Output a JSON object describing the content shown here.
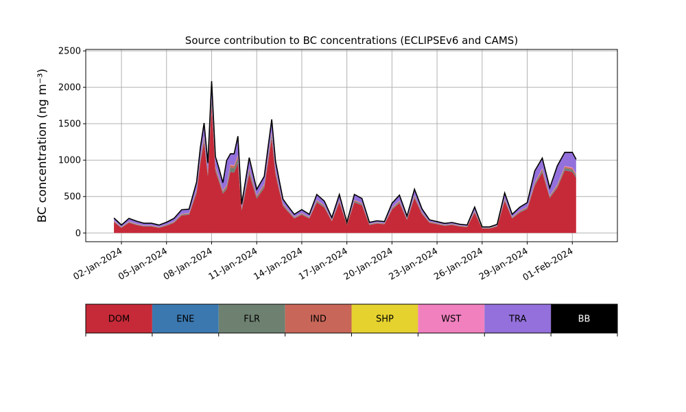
{
  "chart_data": {
    "type": "area",
    "stacked": true,
    "title": "Source contribution to BC concentrations (ECLIPSEv6 and CAMS)",
    "ylabel": "BC concentration (ng m⁻³)",
    "xlabel": "",
    "ylim": [
      -120,
      2520
    ],
    "xlim": [
      "2023-12-30 15:00",
      "2024-02-04 00:00"
    ],
    "grid": true,
    "x_ticks": [
      "02-Jan-2024",
      "05-Jan-2024",
      "08-Jan-2024",
      "11-Jan-2024",
      "14-Jan-2024",
      "17-Jan-2024",
      "20-Jan-2024",
      "23-Jan-2024",
      "26-Jan-2024",
      "29-Jan-2024",
      "01-Feb-2024"
    ],
    "y_ticks": [
      0,
      500,
      1000,
      1500,
      2000,
      2500
    ],
    "x": [
      "2024-01-01 12:00",
      "2024-01-01 18:00",
      "2024-01-02 00:00",
      "2024-01-02 12:00",
      "2024-01-03 00:00",
      "2024-01-03 12:00",
      "2024-01-04 00:00",
      "2024-01-04 12:00",
      "2024-01-05 00:00",
      "2024-01-05 12:00",
      "2024-01-06 00:00",
      "2024-01-06 12:00",
      "2024-01-07 00:00",
      "2024-01-07 06:00",
      "2024-01-07 12:00",
      "2024-01-07 18:00",
      "2024-01-08 00:00",
      "2024-01-08 06:00",
      "2024-01-08 12:00",
      "2024-01-08 18:00",
      "2024-01-09 00:00",
      "2024-01-09 06:00",
      "2024-01-09 12:00",
      "2024-01-09 18:00",
      "2024-01-10 00:00",
      "2024-01-10 12:00",
      "2024-01-11 00:00",
      "2024-01-11 12:00",
      "2024-01-12 00:00",
      "2024-01-12 06:00",
      "2024-01-12 12:00",
      "2024-01-12 18:00",
      "2024-01-13 00:00",
      "2024-01-13 12:00",
      "2024-01-14 00:00",
      "2024-01-14 12:00",
      "2024-01-15 00:00",
      "2024-01-15 12:00",
      "2024-01-16 00:00",
      "2024-01-16 12:00",
      "2024-01-17 00:00",
      "2024-01-17 12:00",
      "2024-01-18 00:00",
      "2024-01-18 12:00",
      "2024-01-19 00:00",
      "2024-01-19 12:00",
      "2024-01-20 00:00",
      "2024-01-20 12:00",
      "2024-01-21 00:00",
      "2024-01-21 12:00",
      "2024-01-22 00:00",
      "2024-01-22 12:00",
      "2024-01-23 00:00",
      "2024-01-23 12:00",
      "2024-01-24 00:00",
      "2024-01-24 12:00",
      "2024-01-25 00:00",
      "2024-01-25 12:00",
      "2024-01-26 00:00",
      "2024-01-26 12:00",
      "2024-01-27 00:00",
      "2024-01-27 12:00",
      "2024-01-28 00:00",
      "2024-01-28 12:00",
      "2024-01-29 00:00",
      "2024-01-29 12:00",
      "2024-01-30 00:00",
      "2024-01-30 12:00",
      "2024-01-31 00:00",
      "2024-01-31 12:00",
      "2024-02-01 00:00",
      "2024-02-01 06:00"
    ],
    "series": [
      {
        "name": "DOM",
        "color": "#c62a38",
        "values": [
          150,
          110,
          70,
          140,
          110,
          90,
          90,
          70,
          100,
          140,
          240,
          250,
          550,
          960,
          1250,
          780,
          1750,
          850,
          700,
          540,
          600,
          840,
          830,
          960,
          310,
          810,
          470,
          620,
          1300,
          800,
          580,
          370,
          310,
          200,
          250,
          200,
          420,
          350,
          160,
          420,
          110,
          420,
          380,
          110,
          130,
          120,
          320,
          410,
          180,
          480,
          260,
          140,
          120,
          100,
          110,
          90,
          80,
          280,
          60,
          60,
          90,
          440,
          200,
          280,
          330,
          650,
          830,
          480,
          620,
          860,
          840,
          760
        ]
      },
      {
        "name": "ENE",
        "color": "#3b78b0",
        "values": [
          2,
          2,
          2,
          2,
          2,
          2,
          2,
          2,
          2,
          2,
          3,
          3,
          4,
          5,
          6,
          5,
          7,
          5,
          5,
          4,
          4,
          5,
          5,
          5,
          3,
          5,
          4,
          4,
          6,
          5,
          4,
          3,
          3,
          2,
          2,
          2,
          3,
          3,
          2,
          3,
          2,
          3,
          3,
          2,
          2,
          2,
          3,
          3,
          2,
          3,
          3,
          2,
          2,
          2,
          2,
          2,
          2,
          3,
          2,
          2,
          2,
          3,
          2,
          3,
          3,
          4,
          5,
          3,
          4,
          5,
          5,
          5
        ]
      },
      {
        "name": "FLR",
        "color": "#6e8171",
        "values": [
          8,
          6,
          5,
          8,
          6,
          5,
          5,
          5,
          6,
          8,
          10,
          10,
          20,
          30,
          40,
          25,
          50,
          30,
          25,
          20,
          30,
          55,
          55,
          60,
          15,
          40,
          20,
          25,
          45,
          30,
          20,
          15,
          12,
          8,
          10,
          8,
          15,
          12,
          8,
          15,
          6,
          15,
          14,
          6,
          6,
          6,
          12,
          15,
          8,
          16,
          10,
          6,
          6,
          5,
          5,
          5,
          5,
          10,
          4,
          4,
          5,
          15,
          8,
          10,
          12,
          20,
          25,
          15,
          20,
          25,
          25,
          22
        ]
      },
      {
        "name": "IND",
        "color": "#c86759",
        "values": [
          6,
          5,
          4,
          6,
          5,
          4,
          4,
          4,
          5,
          6,
          8,
          8,
          15,
          20,
          25,
          18,
          35,
          20,
          18,
          15,
          20,
          30,
          30,
          35,
          10,
          25,
          15,
          18,
          30,
          20,
          15,
          10,
          10,
          6,
          8,
          6,
          12,
          10,
          6,
          12,
          5,
          12,
          10,
          5,
          5,
          5,
          10,
          12,
          6,
          12,
          8,
          5,
          5,
          4,
          4,
          4,
          4,
          8,
          3,
          3,
          4,
          12,
          6,
          8,
          10,
          15,
          20,
          12,
          15,
          20,
          20,
          18
        ]
      },
      {
        "name": "SHP",
        "color": "#e5d22e",
        "values": [
          1,
          1,
          1,
          1,
          1,
          1,
          1,
          1,
          1,
          1,
          1,
          1,
          1,
          2,
          2,
          2,
          2,
          2,
          1,
          1,
          1,
          2,
          2,
          2,
          1,
          2,
          1,
          1,
          2,
          2,
          1,
          1,
          1,
          1,
          1,
          1,
          1,
          1,
          1,
          1,
          1,
          1,
          1,
          1,
          1,
          1,
          1,
          1,
          1,
          1,
          1,
          1,
          1,
          1,
          1,
          1,
          1,
          1,
          1,
          1,
          1,
          1,
          1,
          1,
          1,
          1,
          2,
          1,
          1,
          2,
          2,
          2
        ]
      },
      {
        "name": "WST",
        "color": "#f180bf",
        "values": [
          2,
          2,
          1,
          2,
          2,
          1,
          1,
          1,
          2,
          2,
          3,
          3,
          5,
          7,
          9,
          6,
          10,
          7,
          6,
          5,
          6,
          8,
          8,
          9,
          3,
          7,
          4,
          5,
          9,
          6,
          5,
          3,
          3,
          2,
          2,
          2,
          4,
          3,
          2,
          4,
          1,
          4,
          3,
          1,
          1,
          1,
          3,
          4,
          2,
          4,
          2,
          1,
          1,
          1,
          1,
          1,
          1,
          2,
          1,
          1,
          1,
          4,
          2,
          3,
          3,
          6,
          8,
          4,
          6,
          8,
          8,
          7
        ]
      },
      {
        "name": "TRA",
        "color": "#9370db",
        "values": [
          35,
          30,
          25,
          40,
          35,
          30,
          30,
          25,
          30,
          40,
          50,
          50,
          100,
          140,
          170,
          120,
          220,
          130,
          120,
          100,
          330,
          140,
          150,
          250,
          50,
          140,
          80,
          100,
          160,
          120,
          90,
          60,
          50,
          35,
          45,
          35,
          70,
          55,
          30,
          70,
          20,
          70,
          60,
          20,
          22,
          20,
          55,
          70,
          30,
          80,
          45,
          25,
          20,
          18,
          20,
          16,
          15,
          50,
          12,
          12,
          15,
          70,
          35,
          45,
          55,
          150,
          130,
          100,
          250,
          180,
          200,
          190
        ]
      },
      {
        "name": "BB",
        "color": "#000000",
        "values": [
          2,
          2,
          1,
          2,
          2,
          1,
          1,
          1,
          2,
          2,
          3,
          3,
          5,
          6,
          8,
          5,
          10,
          6,
          5,
          5,
          5,
          8,
          8,
          8,
          3,
          6,
          4,
          5,
          8,
          6,
          5,
          3,
          3,
          2,
          2,
          2,
          4,
          3,
          2,
          4,
          1,
          4,
          3,
          1,
          1,
          1,
          3,
          4,
          2,
          4,
          2,
          1,
          1,
          1,
          1,
          1,
          1,
          2,
          1,
          1,
          1,
          4,
          2,
          3,
          3,
          6,
          8,
          4,
          6,
          8,
          8,
          7
        ]
      }
    ]
  }
}
